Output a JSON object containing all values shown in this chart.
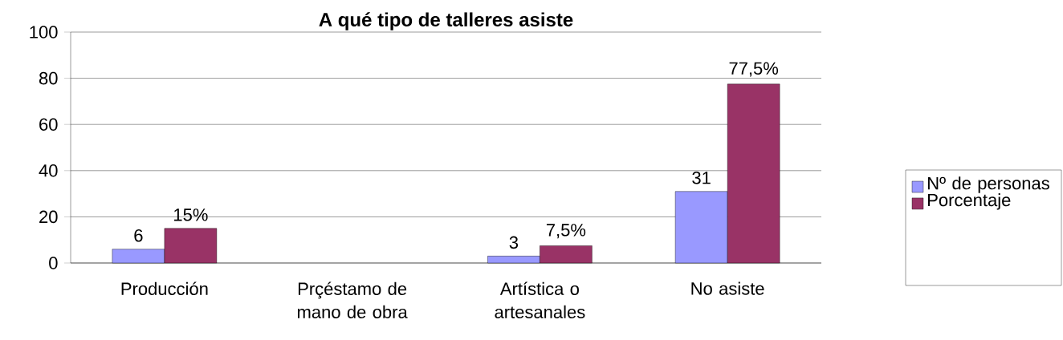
{
  "chart_data": {
    "type": "bar",
    "title": "A qué tipo de talleres asiste",
    "categories": [
      "Producción",
      "Prçéstamo de mano de obra",
      "Artística o artesanales",
      "No asiste"
    ],
    "series": [
      {
        "name": "Nº de personas",
        "color": "#9999ff",
        "values": [
          6,
          null,
          3,
          31
        ],
        "value_labels": [
          "6",
          null,
          "3",
          "31"
        ]
      },
      {
        "name": "Porcentaje",
        "color": "#993366",
        "values": [
          15,
          null,
          7.5,
          77.5
        ],
        "value_labels": [
          "15%",
          null,
          "7,5%",
          "77,5%"
        ]
      }
    ],
    "ylim": [
      0,
      100
    ],
    "yticks": [
      0,
      20,
      40,
      60,
      80,
      100
    ],
    "grid": "y",
    "legend": "right"
  }
}
